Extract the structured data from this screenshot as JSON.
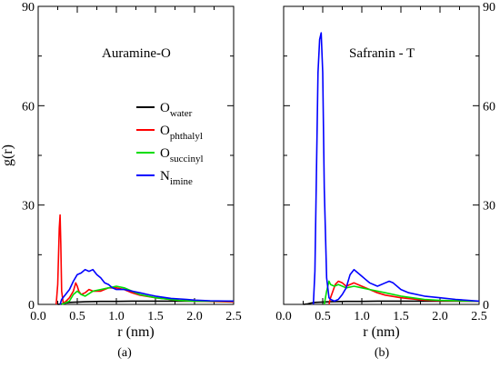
{
  "figure": {
    "label_a": "(a)",
    "label_b": "(b)"
  },
  "chart_data": [
    {
      "type": "line",
      "annotation": "Auramine-O",
      "panel_label": "(a)",
      "xlabel": "r (nm)",
      "ylabel": "g(r)",
      "xlim": [
        0.0,
        2.5
      ],
      "ylim": [
        0,
        90
      ],
      "xticks": [
        "0.0",
        "0.5",
        "1.0",
        "1.5",
        "2.0",
        "2.5"
      ],
      "yticks": [
        "0",
        "30",
        "60",
        "90"
      ],
      "grid": false,
      "legend_position": "center",
      "series": [
        {
          "name": "O",
          "subscript": "water",
          "color": "#000000",
          "x": [
            0.25,
            0.3,
            0.35,
            0.4,
            0.5,
            0.6,
            0.8,
            1.0,
            1.2,
            1.5,
            2.0,
            2.5
          ],
          "y": [
            0,
            0.1,
            0.4,
            0.6,
            0.7,
            0.8,
            0.9,
            0.9,
            1.0,
            1.0,
            1.0,
            1.0
          ]
        },
        {
          "name": "O",
          "subscript": "phthalyl",
          "color": "#ff0000",
          "x": [
            0.23,
            0.25,
            0.27,
            0.28,
            0.29,
            0.3,
            0.32,
            0.35,
            0.4,
            0.45,
            0.48,
            0.5,
            0.52,
            0.55,
            0.6,
            0.65,
            0.7,
            0.8,
            0.9,
            1.0,
            1.1,
            1.2,
            1.3,
            1.5,
            1.8,
            2.0,
            2.5
          ],
          "y": [
            0,
            6,
            23,
            27,
            18,
            4,
            0.5,
            0.8,
            2,
            4,
            6.5,
            5.5,
            4,
            3,
            3.5,
            4.5,
            4,
            4,
            5,
            5,
            4.5,
            3.5,
            2.8,
            2,
            1.2,
            1,
            0.7
          ]
        },
        {
          "name": "O",
          "subscript": "succinyl",
          "color": "#00dd00",
          "x": [
            0.3,
            0.35,
            0.4,
            0.45,
            0.5,
            0.55,
            0.6,
            0.7,
            0.8,
            0.9,
            1.0,
            1.1,
            1.2,
            1.3,
            1.5,
            1.8,
            2.0,
            2.5
          ],
          "y": [
            0,
            0.5,
            1,
            3,
            4,
            3,
            2.5,
            4,
            4.5,
            5,
            5.5,
            5,
            4,
            3,
            2,
            1.2,
            1,
            1
          ]
        },
        {
          "name": "N",
          "subscript": "imine",
          "color": "#0000ff",
          "x": [
            0.28,
            0.3,
            0.35,
            0.4,
            0.45,
            0.5,
            0.55,
            0.6,
            0.65,
            0.7,
            0.75,
            0.8,
            0.85,
            0.9,
            0.95,
            1.0,
            1.1,
            1.2,
            1.3,
            1.4,
            1.5,
            1.7,
            1.9,
            2.0,
            2.2,
            2.5
          ],
          "y": [
            0,
            1.5,
            3,
            4.5,
            7,
            9,
            9.5,
            10.5,
            10,
            10.5,
            9,
            8,
            6.5,
            6,
            5,
            4.5,
            4.5,
            4,
            3.5,
            3,
            2.5,
            1.8,
            1.5,
            1.3,
            1.1,
            1
          ]
        }
      ]
    },
    {
      "type": "line",
      "annotation": "Safranin - T",
      "panel_label": "(b)",
      "xlabel": "r (nm)",
      "ylabel": "",
      "xlim": [
        0.0,
        2.5
      ],
      "ylim": [
        0,
        90
      ],
      "xticks": [
        "0.0",
        "0.5",
        "1.0",
        "1.5",
        "2.0",
        "2.5"
      ],
      "yticks": [
        "0",
        "30",
        "60",
        "90"
      ],
      "grid": false,
      "series": [
        {
          "color": "#000000",
          "x": [
            0.25,
            0.3,
            0.35,
            0.4,
            0.5,
            0.6,
            0.8,
            1.0,
            1.2,
            1.5,
            2.0,
            2.5
          ],
          "y": [
            0,
            0.1,
            0.4,
            0.6,
            0.7,
            0.8,
            0.9,
            0.9,
            1.0,
            1.0,
            1.0,
            1.0
          ]
        },
        {
          "color": "#ff0000",
          "x": [
            0.58,
            0.6,
            0.63,
            0.66,
            0.7,
            0.75,
            0.8,
            0.85,
            0.9,
            1.0,
            1.1,
            1.2,
            1.3,
            1.5,
            1.8,
            2.0,
            2.5
          ],
          "y": [
            0,
            2,
            4,
            6,
            7,
            6.5,
            5.5,
            6,
            6.5,
            5.5,
            4.5,
            3.5,
            2.8,
            2,
            1.3,
            1.1,
            1
          ]
        },
        {
          "color": "#00dd00",
          "x": [
            0.52,
            0.55,
            0.58,
            0.6,
            0.65,
            0.7,
            0.8,
            0.9,
            1.0,
            1.1,
            1.2,
            1.3,
            1.5,
            1.8,
            2.0,
            2.5
          ],
          "y": [
            0,
            4,
            7,
            6,
            5.5,
            6,
            5,
            5.5,
            5,
            4.5,
            4,
            3.5,
            2.5,
            1.5,
            1.2,
            1
          ]
        },
        {
          "color": "#0000ff",
          "x": [
            0.38,
            0.4,
            0.42,
            0.44,
            0.46,
            0.48,
            0.5,
            0.52,
            0.55,
            0.58,
            0.6,
            0.65,
            0.7,
            0.75,
            0.8,
            0.85,
            0.9,
            0.95,
            1.0,
            1.05,
            1.1,
            1.2,
            1.3,
            1.35,
            1.4,
            1.5,
            1.6,
            1.8,
            2.0,
            2.2,
            2.5
          ],
          "y": [
            0,
            10,
            40,
            70,
            80,
            82,
            70,
            35,
            8,
            2,
            1.5,
            1,
            1.5,
            3,
            5,
            9,
            10.5,
            9.5,
            8.5,
            7.5,
            6.5,
            5.5,
            6.5,
            7,
            6.5,
            4.5,
            3.5,
            2.5,
            2,
            1.5,
            1
          ]
        }
      ]
    }
  ]
}
